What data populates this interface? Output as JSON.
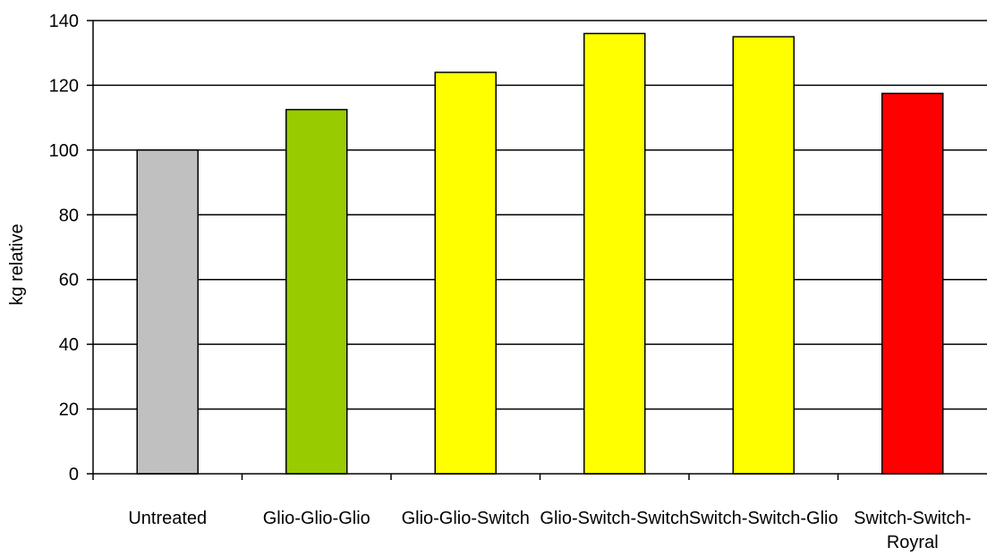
{
  "chart_data": {
    "type": "bar",
    "title": "",
    "xlabel": "",
    "ylabel": "kg relative",
    "ylim": [
      0,
      140
    ],
    "yticks": [
      "0",
      "20",
      "40",
      "60",
      "80",
      "100",
      "120",
      "140"
    ],
    "grid": true,
    "legend": "none",
    "categories": [
      [
        "Untreated"
      ],
      [
        "Glio-Glio-Glio"
      ],
      [
        "Glio-Glio-Switch"
      ],
      [
        "Glio-Switch-Switch"
      ],
      [
        "Switch-Switch-Glio"
      ],
      [
        "Switch-Switch-",
        "Royral"
      ]
    ],
    "values": [
      100,
      112.5,
      124,
      136,
      135,
      117.5
    ],
    "colors": [
      "#c0c0c0",
      "#99cc00",
      "#ffff00",
      "#ffff00",
      "#ffff00",
      "#ff0000"
    ]
  }
}
